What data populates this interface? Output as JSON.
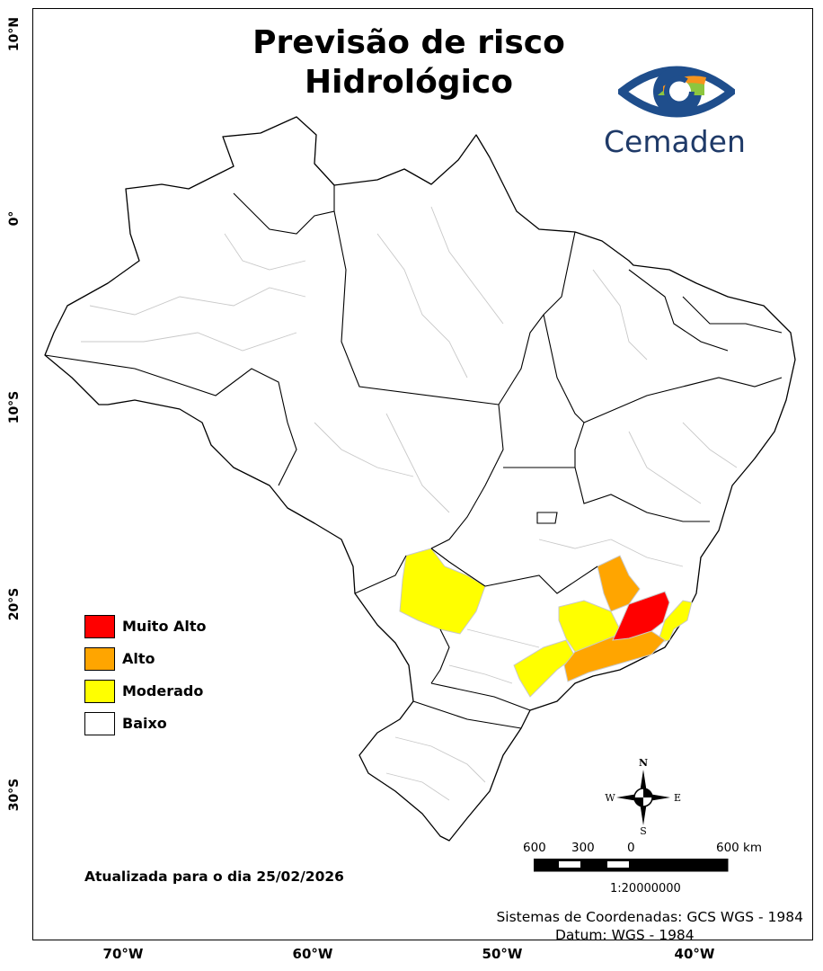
{
  "title": {
    "line1": "Previsão de risco",
    "line2": "Hidrológico"
  },
  "logo": {
    "text": "Cemaden",
    "colors": {
      "blue": "#1f4e8c",
      "green": "#8dc63f",
      "orange": "#f7941d"
    }
  },
  "latitude_labels": [
    "10°N",
    "0°",
    "10°S",
    "20°S",
    "30°S"
  ],
  "longitude_labels": [
    "70°W",
    "60°W",
    "50°W",
    "40°W"
  ],
  "legend": [
    {
      "label": "Muito Alto",
      "color": "#ff0000"
    },
    {
      "label": "Alto",
      "color": "#ffa500"
    },
    {
      "label": "Moderado",
      "color": "#ffff00"
    },
    {
      "label": "Baixo",
      "color": "#ffffff"
    }
  ],
  "updated": "Atualizada para o dia 25/02/2026",
  "compass": {
    "n": "N",
    "s": "S",
    "e": "E",
    "w": "W"
  },
  "scale": {
    "ticks": [
      "600",
      "300",
      "0",
      "600 km"
    ],
    "ratio": "1:20000000"
  },
  "coordinates": {
    "system": "Sistemas de Coordenadas: GCS WGS - 1984",
    "datum": "Datum: WGS - 1984"
  },
  "colors": {
    "outline": "#000000",
    "internal_borders": "#c8c8c8"
  }
}
